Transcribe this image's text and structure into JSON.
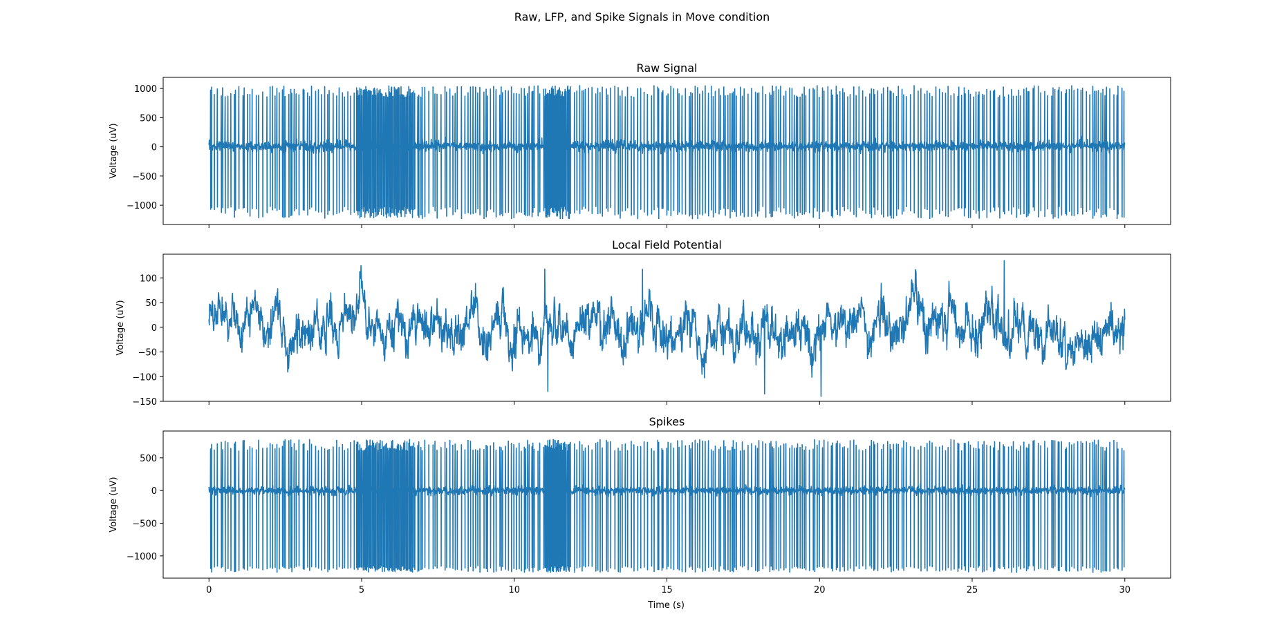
{
  "figure": {
    "suptitle": "Raw, LFP, and Spike Signals in Move condition",
    "xlabel": "Time (s)"
  },
  "style": {
    "line_color": "#1f77b4",
    "axes_color": "#000000",
    "background": "#ffffff"
  },
  "chart_data": [
    {
      "type": "line",
      "title": "Raw Signal",
      "xlabel": "",
      "ylabel": "Voltage (uV)",
      "xlim": [
        -1.5,
        31.5
      ],
      "ylim": [
        -1330,
        1190
      ],
      "xticks": [
        0,
        5,
        10,
        15,
        20,
        25,
        30
      ],
      "xtick_labels_visible": false,
      "yticks": [
        1000,
        500,
        0,
        -500,
        -1000
      ],
      "ytick_labels": [
        "1000",
        "500",
        "0",
        "−500",
        "−1000"
      ],
      "grid": false,
      "series": [
        {
          "name": "",
          "x_range": [
            0,
            30
          ],
          "baseline_envelope": [
            -90,
            110
          ],
          "spike_peak_range": [
            850,
            1050
          ],
          "spike_trough_range": [
            -1230,
            -1020
          ],
          "spike_count_approx": 420,
          "dense_bursts": [
            [
              4.8,
              6.7
            ],
            [
              11.0,
              11.8
            ]
          ]
        }
      ]
    },
    {
      "type": "line",
      "title": "Local Field Potential",
      "xlabel": "",
      "ylabel": "Voltage (uV)",
      "xlim": [
        -1.5,
        31.5
      ],
      "ylim": [
        -150,
        148
      ],
      "xticks": [
        0,
        5,
        10,
        15,
        20,
        25,
        30
      ],
      "xtick_labels_visible": false,
      "yticks": [
        100,
        50,
        0,
        -50,
        -100,
        -150
      ],
      "ytick_labels": [
        "100",
        "50",
        "0",
        "−50",
        "−100",
        "−150"
      ],
      "grid": false,
      "series": [
        {
          "name": "",
          "x_range": [
            0,
            30
          ],
          "typical_range": [
            -60,
            60
          ],
          "max": 135,
          "min": -140,
          "notable_peaks": [
            [
              26.05,
              135
            ],
            [
              11.0,
              118
            ],
            [
              14.2,
              118
            ],
            [
              20.05,
              -140
            ],
            [
              18.2,
              -135
            ],
            [
              11.1,
              -130
            ]
          ]
        }
      ]
    },
    {
      "type": "line",
      "title": "Spikes",
      "xlabel": "Time (s)",
      "ylabel": "Voltage (uV)",
      "xlim": [
        -1.5,
        31.5
      ],
      "ylim": [
        -1340,
        910
      ],
      "xticks": [
        0,
        5,
        10,
        15,
        20,
        25,
        30
      ],
      "xtick_labels": [
        "0",
        "5",
        "10",
        "15",
        "20",
        "25",
        "30"
      ],
      "yticks": [
        500,
        0,
        -500,
        -1000
      ],
      "ytick_labels": [
        "500",
        "0",
        "−500",
        "−1000"
      ],
      "grid": false,
      "series": [
        {
          "name": "",
          "x_range": [
            0,
            30
          ],
          "baseline_envelope": [
            -70,
            70
          ],
          "spike_peak_range": [
            600,
            780
          ],
          "spike_trough_range": [
            -1250,
            -1150
          ],
          "spike_count_approx": 420,
          "dense_bursts": [
            [
              4.8,
              6.7
            ],
            [
              11.0,
              11.8
            ]
          ]
        }
      ]
    }
  ]
}
